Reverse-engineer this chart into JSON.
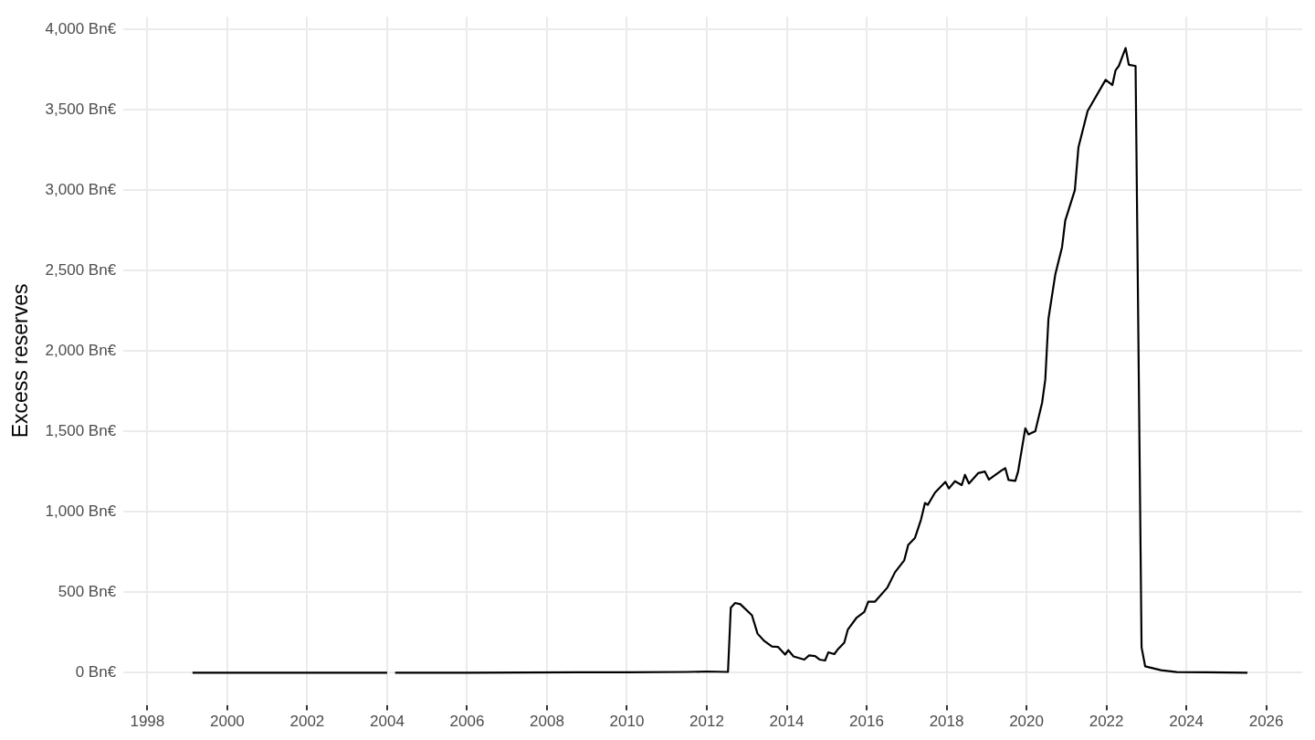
{
  "chart_data": {
    "type": "line",
    "ylabel": "Excess reserves",
    "x": [
      1999.13,
      2001,
      2003,
      2004.0,
      2004.1,
      2004.2,
      2006,
      2008.8,
      2010,
      2011.5,
      2012.0,
      2012.53,
      2012.6,
      2012.71,
      2012.84,
      2013.13,
      2013.27,
      2013.44,
      2013.63,
      2013.78,
      2013.96,
      2014.04,
      2014.17,
      2014.44,
      2014.56,
      2014.71,
      2014.82,
      2014.96,
      2015.04,
      2015.19,
      2015.29,
      2015.44,
      2015.53,
      2015.75,
      2015.94,
      2016.04,
      2016.21,
      2016.52,
      2016.71,
      2016.94,
      2017.04,
      2017.21,
      2017.36,
      2017.46,
      2017.53,
      2017.71,
      2017.97,
      2018.06,
      2018.21,
      2018.38,
      2018.46,
      2018.56,
      2018.79,
      2018.96,
      2019.06,
      2019.37,
      2019.47,
      2019.55,
      2019.72,
      2019.79,
      2019.97,
      2020.05,
      2020.22,
      2020.39,
      2020.47,
      2020.55,
      2020.72,
      2020.89,
      2020.97,
      2021.21,
      2021.3,
      2021.53,
      2021.98,
      2022.15,
      2022.23,
      2022.31,
      2022.48,
      2022.56,
      2022.73,
      2022.88,
      2022.97,
      2023.37,
      2023.76,
      2024.5,
      2025.53
    ],
    "series": [
      {
        "color": "#000000",
        "values": [
          0,
          0,
          0,
          0,
          null,
          0,
          0,
          3,
          3,
          5,
          8,
          5,
          404,
          434,
          426,
          357,
          243,
          197,
          163,
          161,
          113,
          140,
          102,
          82,
          108,
          104,
          82,
          76,
          127,
          116,
          149,
          187,
          269,
          343,
          378,
          442,
          442,
          530,
          625,
          699,
          795,
          839,
          952,
          1056,
          1044,
          1120,
          1187,
          1146,
          1191,
          1167,
          1231,
          1177,
          1241,
          1251,
          1201,
          1257,
          1272,
          1199,
          1193,
          1251,
          1520,
          1482,
          1502,
          1678,
          1822,
          2202,
          2476,
          2647,
          2812,
          3001,
          3267,
          3493,
          3687,
          3655,
          3747,
          3773,
          3885,
          3781,
          3773,
          158,
          40,
          16,
          4,
          3,
          0
        ]
      }
    ],
    "xlim": [
      1997.4,
      2026.9
    ],
    "xticks": [
      1998,
      2000,
      2002,
      2004,
      2006,
      2008,
      2010,
      2012,
      2014,
      2016,
      2018,
      2020,
      2022,
      2024,
      2026
    ],
    "ylim": [
      -200,
      4080
    ],
    "yticks": [
      {
        "value": 0,
        "label": "0 Bn€"
      },
      {
        "value": 500,
        "label": "500 Bn€"
      },
      {
        "value": 1000,
        "label": "1,000 Bn€"
      },
      {
        "value": 1500,
        "label": "1,500 Bn€"
      },
      {
        "value": 2000,
        "label": "2,000 Bn€"
      },
      {
        "value": 2500,
        "label": "2,500 Bn€"
      },
      {
        "value": 3000,
        "label": "3,000 Bn€"
      },
      {
        "value": 3500,
        "label": "3,500 Bn€"
      },
      {
        "value": 4000,
        "label": "4,000 Bn€"
      }
    ],
    "grid": true,
    "legend": false,
    "marker": "none",
    "line_style": "solid"
  }
}
